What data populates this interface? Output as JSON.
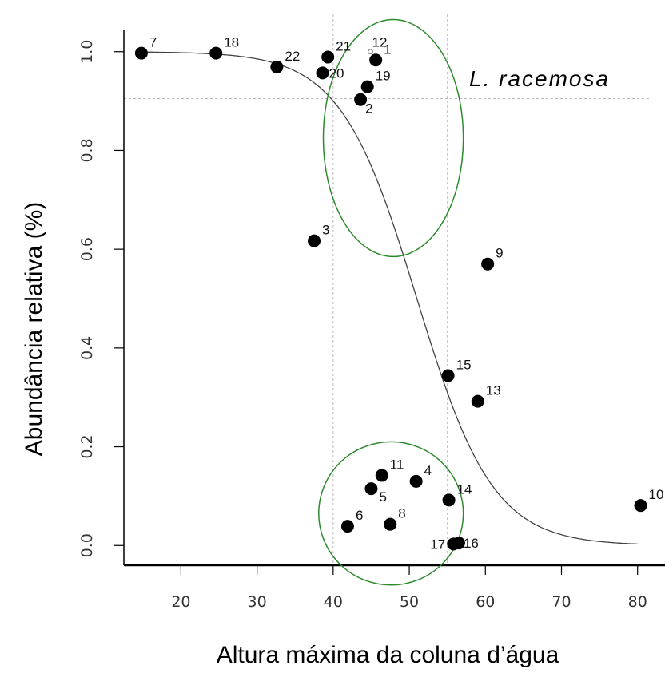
{
  "chart_data": {
    "type": "scatter",
    "xlabel": "Altura máxima da coluna d’água",
    "ylabel": "Abundância relativa (%)",
    "annotation": "L. racemosa",
    "xticks": [
      20,
      30,
      40,
      50,
      60,
      70,
      80
    ],
    "yticks": [
      "0.0",
      "0.2",
      "0.4",
      "0.6",
      "0.8",
      "1.0"
    ],
    "xlim": [
      12.5,
      81.5
    ],
    "ylim": [
      -0.04,
      1.04
    ],
    "threshold_y": 0.905,
    "threshold_x": [
      40,
      55
    ],
    "grid": false,
    "points": [
      {
        "label": "1",
        "x": 45.6,
        "y": 0.983
      },
      {
        "label": "2",
        "x": 43.6,
        "y": 0.903
      },
      {
        "label": "3",
        "x": 37.5,
        "y": 0.617
      },
      {
        "label": "4",
        "x": 50.9,
        "y": 0.13
      },
      {
        "label": "5",
        "x": 45.0,
        "y": 0.115
      },
      {
        "label": "6",
        "x": 41.9,
        "y": 0.039
      },
      {
        "label": "8",
        "x": 47.5,
        "y": 0.043
      },
      {
        "label": "7",
        "x": 14.8,
        "y": 0.997
      },
      {
        "label": "9",
        "x": 60.3,
        "y": 0.57
      },
      {
        "label": "10",
        "x": 80.4,
        "y": 0.081
      },
      {
        "label": "11",
        "x": 46.4,
        "y": 0.142
      },
      {
        "label": "13",
        "x": 59.0,
        "y": 0.292
      },
      {
        "label": "14",
        "x": 55.2,
        "y": 0.092
      },
      {
        "label": "15",
        "x": 55.1,
        "y": 0.344
      },
      {
        "label": "16",
        "x": 56.5,
        "y": 0.005
      },
      {
        "label": "17",
        "x": 55.8,
        "y": 0.003
      },
      {
        "label": "18",
        "x": 24.6,
        "y": 0.997
      },
      {
        "label": "19",
        "x": 44.5,
        "y": 0.929
      },
      {
        "label": "20",
        "x": 38.6,
        "y": 0.957
      },
      {
        "label": "21",
        "x": 39.3,
        "y": 0.989
      },
      {
        "label": "22",
        "x": 32.6,
        "y": 0.969
      },
      {
        "label": "12",
        "x": 44.9,
        "y": 1.0,
        "marker": "open"
      }
    ],
    "curve": {
      "type": "logistic",
      "midpoint": 51.0,
      "slope": 0.2
    },
    "colors": {
      "points": "#000000",
      "curve": "#444444",
      "ellipses": "#2d8a2d",
      "guides": "#bbbbbb"
    },
    "ellipses": [
      {
        "name": "upper-group",
        "cx": 47.9,
        "cy": 0.825,
        "rx": 9.2,
        "ry": 0.24
      },
      {
        "name": "lower-group",
        "cx": 47.6,
        "cy": 0.065,
        "rx": 9.5,
        "ry": 0.145
      }
    ]
  }
}
